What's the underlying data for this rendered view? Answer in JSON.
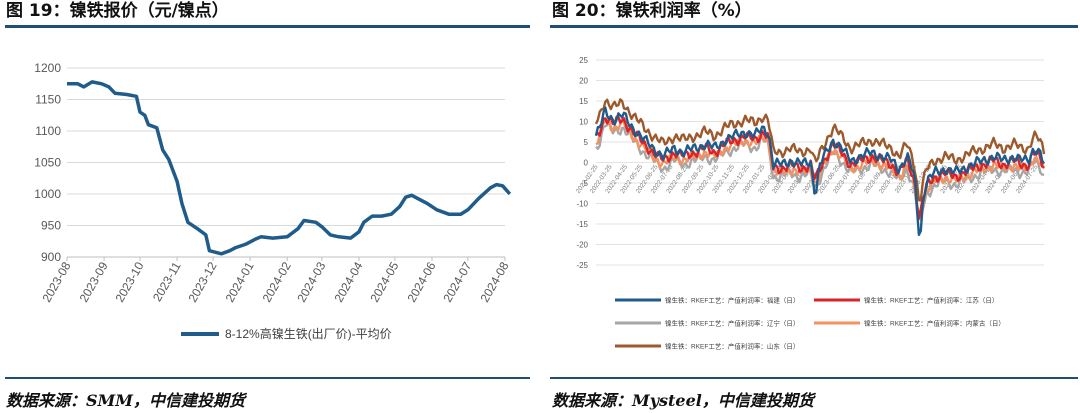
{
  "left_panel": {
    "title": "图 19：镍铁报价（元/镍点）",
    "source": "数据来源：SMM，中信建投期货"
  },
  "right_panel": {
    "title": "图 20：镍铁利润率（%）",
    "source": "数据来源：Mysteel，中信建投期货"
  },
  "colors": {
    "rule": "#1f4e79",
    "series_price": "#1f5c8b",
    "fujian": "#1f5c8b",
    "jiangsu": "#d9232a",
    "liaoning": "#a6a6a6",
    "neimenggu": "#f4915e",
    "shandong": "#9c5a2c"
  },
  "chart_data": [
    {
      "type": "line",
      "title": "",
      "xlabel": "",
      "ylabel": "",
      "ylim": [
        900,
        1200
      ],
      "y_ticks": [
        "900",
        "950",
        "1000",
        "1050",
        "1100",
        "1150",
        "1200"
      ],
      "x_ticks": [
        "2023-08",
        "2023-09",
        "2023-10",
        "2023-11",
        "2023-12",
        "2024-01",
        "2024-02",
        "2024-03",
        "2024-04",
        "2024-05",
        "2024-06",
        "2024-07",
        "2024-08"
      ],
      "grid": "horizontal",
      "legend": "bottom",
      "series": [
        {
          "name": "8-12%高镍生铁(出厂价)-平均价",
          "points": [
            [
              "2023-08-01",
              1175
            ],
            [
              "2023-08-10",
              1175
            ],
            [
              "2023-08-15",
              1170
            ],
            [
              "2023-08-22",
              1178
            ],
            [
              "2023-08-30",
              1175
            ],
            [
              "2023-09-05",
              1170
            ],
            [
              "2023-09-10",
              1160
            ],
            [
              "2023-09-20",
              1158
            ],
            [
              "2023-09-28",
              1155
            ],
            [
              "2023-10-01",
              1130
            ],
            [
              "2023-10-05",
              1125
            ],
            [
              "2023-10-08",
              1110
            ],
            [
              "2023-10-15",
              1105
            ],
            [
              "2023-10-20",
              1070
            ],
            [
              "2023-10-25",
              1055
            ],
            [
              "2023-10-28",
              1040
            ],
            [
              "2023-11-01",
              1020
            ],
            [
              "2023-11-05",
              985
            ],
            [
              "2023-11-10",
              955
            ],
            [
              "2023-11-18",
              945
            ],
            [
              "2023-11-25",
              935
            ],
            [
              "2023-11-28",
              910
            ],
            [
              "2023-12-08",
              905
            ],
            [
              "2023-12-15",
              910
            ],
            [
              "2023-12-20",
              915
            ],
            [
              "2023-12-28",
              920
            ],
            [
              "2024-01-05",
              928
            ],
            [
              "2024-01-10",
              932
            ],
            [
              "2024-01-20",
              930
            ],
            [
              "2024-02-01",
              932
            ],
            [
              "2024-02-10",
              945
            ],
            [
              "2024-02-15",
              958
            ],
            [
              "2024-02-25",
              955
            ],
            [
              "2024-03-01",
              948
            ],
            [
              "2024-03-08",
              935
            ],
            [
              "2024-03-15",
              932
            ],
            [
              "2024-03-25",
              930
            ],
            [
              "2024-04-01",
              940
            ],
            [
              "2024-04-05",
              955
            ],
            [
              "2024-04-12",
              965
            ],
            [
              "2024-04-20",
              965
            ],
            [
              "2024-04-28",
              968
            ],
            [
              "2024-05-05",
              980
            ],
            [
              "2024-05-10",
              995
            ],
            [
              "2024-05-15",
              998
            ],
            [
              "2024-05-20",
              993
            ],
            [
              "2024-05-28",
              985
            ],
            [
              "2024-06-05",
              975
            ],
            [
              "2024-06-15",
              968
            ],
            [
              "2024-06-25",
              968
            ],
            [
              "2024-07-01",
              975
            ],
            [
              "2024-07-10",
              993
            ],
            [
              "2024-07-20",
              1010
            ],
            [
              "2024-07-25",
              1015
            ],
            [
              "2024-07-30",
              1013
            ],
            [
              "2024-08-05",
              1000
            ]
          ]
        }
      ]
    },
    {
      "type": "line",
      "title": "",
      "xlabel": "",
      "ylabel": "",
      "ylim": [
        -25,
        25
      ],
      "y_ticks": [
        "-25",
        "-20",
        "-15",
        "-10",
        "-5",
        "0",
        "5",
        "10",
        "15",
        "20",
        "25"
      ],
      "x_range": [
        "2022-02-25",
        "2024-08-10"
      ],
      "x_ticks": [
        "2022-02-25",
        "2022-03-25",
        "2022-04-25",
        "2022-05-25",
        "2022-06-25",
        "2022-07-25",
        "2022-08-25",
        "2022-09-25",
        "2022-10-25",
        "2022-11-25",
        "2022-12-25",
        "2023-01-25",
        "2023-02-25",
        "2023-03-25",
        "2023-04-25",
        "2023-05-25",
        "2023-06-25",
        "2023-07-25",
        "2023-08-25",
        "2023-09-25",
        "2023-10-25",
        "2023-11-25",
        "2023-12-25",
        "2024-01-25",
        "2024-02-25",
        "2024-03-25",
        "2024-04-25",
        "2024-05-25",
        "2024-06-25",
        "2024-07-25"
      ],
      "grid": "horizontal",
      "legend": "bottom",
      "base_profile": [
        [
          "2022-02-25",
          6
        ],
        [
          "2022-03-05",
          8
        ],
        [
          "2022-03-15",
          12
        ],
        [
          "2022-04-01",
          10
        ],
        [
          "2022-04-20",
          11
        ],
        [
          "2022-05-10",
          8
        ],
        [
          "2022-06-01",
          5
        ],
        [
          "2022-06-20",
          3
        ],
        [
          "2022-07-10",
          1
        ],
        [
          "2022-08-01",
          3
        ],
        [
          "2022-08-20",
          2
        ],
        [
          "2022-09-10",
          3
        ],
        [
          "2022-10-01",
          4
        ],
        [
          "2022-10-20",
          3
        ],
        [
          "2022-11-10",
          5
        ],
        [
          "2022-12-01",
          6
        ],
        [
          "2022-12-20",
          7
        ],
        [
          "2023-01-10",
          6
        ],
        [
          "2023-01-25",
          8
        ],
        [
          "2023-02-05",
          7
        ],
        [
          "2023-02-15",
          -1
        ],
        [
          "2023-03-01",
          -1
        ],
        [
          "2023-03-20",
          0
        ],
        [
          "2023-04-10",
          -1
        ],
        [
          "2023-05-01",
          0
        ],
        [
          "2023-05-10",
          -4
        ],
        [
          "2023-05-20",
          -1
        ],
        [
          "2023-06-01",
          2
        ],
        [
          "2023-06-15",
          5
        ],
        [
          "2023-07-01",
          3
        ],
        [
          "2023-07-20",
          0
        ],
        [
          "2023-08-10",
          1
        ],
        [
          "2023-09-01",
          2
        ],
        [
          "2023-09-20",
          1
        ],
        [
          "2023-10-10",
          0
        ],
        [
          "2023-10-25",
          -2
        ],
        [
          "2023-11-10",
          1
        ],
        [
          "2023-11-25",
          -4
        ],
        [
          "2023-12-05",
          -14
        ],
        [
          "2023-12-10",
          -9
        ],
        [
          "2023-12-20",
          -5
        ],
        [
          "2024-01-05",
          -3
        ],
        [
          "2024-01-25",
          -2
        ],
        [
          "2024-02-15",
          -3
        ],
        [
          "2024-03-01",
          -2
        ],
        [
          "2024-03-20",
          -1
        ],
        [
          "2024-04-10",
          0
        ],
        [
          "2024-05-01",
          1
        ],
        [
          "2024-05-20",
          0
        ],
        [
          "2024-06-10",
          1
        ],
        [
          "2024-06-25",
          0
        ],
        [
          "2024-07-10",
          0
        ],
        [
          "2024-07-20",
          3
        ],
        [
          "2024-08-01",
          2
        ],
        [
          "2024-08-10",
          -1
        ]
      ],
      "series": [
        {
          "name": "镍生铁：RKEF工艺：产值利润率：福建（日）",
          "color": "#1f5c8b",
          "offset": 0.5,
          "extra_dip": [
            [
              "2023-05-10",
              -8
            ],
            [
              "2023-12-05",
              -18
            ]
          ]
        },
        {
          "name": "镍生铁：RKEF工艺：产值利润率：江苏（日）",
          "color": "#d9232a",
          "offset": -0.5
        },
        {
          "name": "镍生铁：RKEF工艺：产值利润率：辽宁（日）",
          "color": "#a6a6a6",
          "offset": -2.5
        },
        {
          "name": "镍生铁：RKEF工艺：产值利润率：内蒙古（日）",
          "color": "#f4915e",
          "offset": -1.5
        },
        {
          "name": "镍生铁：RKEF工艺：产值利润率：山东（日）",
          "color": "#9c5a2c",
          "offset": 3.5
        }
      ]
    }
  ]
}
